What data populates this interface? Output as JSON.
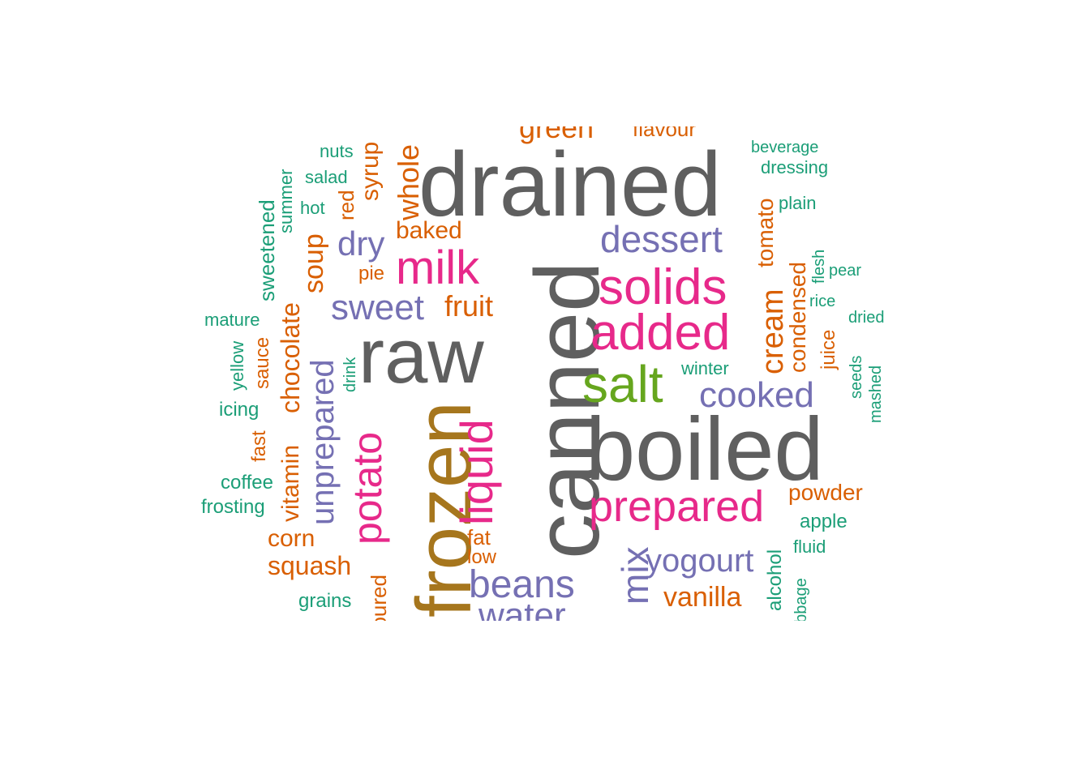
{
  "palette": {
    "gray": "#5f5f5f",
    "pink": "#e7298a",
    "purple": "#7570b3",
    "orange": "#d95f02",
    "teal": "#1b9e77",
    "gold": "#a6761d",
    "green": "#66a61e"
  },
  "words": [
    {
      "text": "drained",
      "color": "gray",
      "weight": 1.0
    },
    {
      "text": "canned",
      "color": "gray",
      "weight": 1.0
    },
    {
      "text": "raw",
      "color": "gray",
      "weight": 0.95
    },
    {
      "text": "boiled",
      "color": "gray",
      "weight": 0.95
    },
    {
      "text": "frozen",
      "color": "gold",
      "weight": 0.8
    },
    {
      "text": "salt",
      "color": "green",
      "weight": 0.6
    },
    {
      "text": "milk",
      "color": "pink",
      "weight": 0.5
    },
    {
      "text": "solids",
      "color": "pink",
      "weight": 0.5
    },
    {
      "text": "added",
      "color": "pink",
      "weight": 0.5
    },
    {
      "text": "liquid",
      "color": "pink",
      "weight": 0.5
    },
    {
      "text": "potato",
      "color": "pink",
      "weight": 0.45
    },
    {
      "text": "prepared",
      "color": "pink",
      "weight": 0.5
    },
    {
      "text": "beans",
      "color": "purple",
      "weight": 0.45
    },
    {
      "text": "dessert",
      "color": "purple",
      "weight": 0.4
    },
    {
      "text": "cooked",
      "color": "purple",
      "weight": 0.4
    },
    {
      "text": "sweet",
      "color": "purple",
      "weight": 0.4
    },
    {
      "text": "dry",
      "color": "purple",
      "weight": 0.38
    },
    {
      "text": "mix",
      "color": "purple",
      "weight": 0.4
    },
    {
      "text": "yogourt",
      "color": "purple",
      "weight": 0.35
    },
    {
      "text": "unprepared",
      "color": "purple",
      "weight": 0.35
    },
    {
      "text": "water",
      "color": "purple",
      "weight": 0.4
    },
    {
      "text": "cream",
      "color": "orange",
      "weight": 0.35
    },
    {
      "text": "whole",
      "color": "orange",
      "weight": 0.3
    },
    {
      "text": "green",
      "color": "orange",
      "weight": 0.3
    },
    {
      "text": "fruit",
      "color": "orange",
      "weight": 0.3
    },
    {
      "text": "baked",
      "color": "orange",
      "weight": 0.25
    },
    {
      "text": "soup",
      "color": "orange",
      "weight": 0.3
    },
    {
      "text": "chocolate",
      "color": "orange",
      "weight": 0.3
    },
    {
      "text": "vitamin",
      "color": "orange",
      "weight": 0.28
    },
    {
      "text": "corn",
      "color": "orange",
      "weight": 0.28
    },
    {
      "text": "squash",
      "color": "orange",
      "weight": 0.28
    },
    {
      "text": "vanilla",
      "color": "orange",
      "weight": 0.28
    },
    {
      "text": "tomato",
      "color": "orange",
      "weight": 0.25
    },
    {
      "text": "condensed",
      "color": "orange",
      "weight": 0.25
    },
    {
      "text": "powder",
      "color": "orange",
      "weight": 0.25
    },
    {
      "text": "syrup",
      "color": "orange",
      "weight": 0.25
    },
    {
      "text": "red",
      "color": "orange",
      "weight": 0.22
    },
    {
      "text": "pie",
      "color": "orange",
      "weight": 0.2
    },
    {
      "text": "sauce",
      "color": "orange",
      "weight": 0.2
    },
    {
      "text": "fast",
      "color": "orange",
      "weight": 0.2
    },
    {
      "text": "fat",
      "color": "orange",
      "weight": 0.2
    },
    {
      "text": "low",
      "color": "orange",
      "weight": 0.2
    },
    {
      "text": "juice",
      "color": "orange",
      "weight": 0.2
    },
    {
      "text": "flavour",
      "color": "orange",
      "weight": 0.2
    },
    {
      "text": "poured",
      "color": "orange",
      "weight": 0.22
    },
    {
      "text": "sweetened",
      "color": "teal",
      "weight": 0.2
    },
    {
      "text": "summer",
      "color": "teal",
      "weight": 0.15
    },
    {
      "text": "nuts",
      "color": "teal",
      "weight": 0.15
    },
    {
      "text": "salad",
      "color": "teal",
      "weight": 0.15
    },
    {
      "text": "hot",
      "color": "teal",
      "weight": 0.15
    },
    {
      "text": "beverage",
      "color": "teal",
      "weight": 0.15
    },
    {
      "text": "dressing",
      "color": "teal",
      "weight": 0.15
    },
    {
      "text": "plain",
      "color": "teal",
      "weight": 0.15
    },
    {
      "text": "flesh",
      "color": "teal",
      "weight": 0.15
    },
    {
      "text": "pear",
      "color": "teal",
      "weight": 0.15
    },
    {
      "text": "rice",
      "color": "teal",
      "weight": 0.15
    },
    {
      "text": "dried",
      "color": "teal",
      "weight": 0.15
    },
    {
      "text": "winter",
      "color": "teal",
      "weight": 0.15
    },
    {
      "text": "seeds",
      "color": "teal",
      "weight": 0.15
    },
    {
      "text": "mashed",
      "color": "teal",
      "weight": 0.15
    },
    {
      "text": "mature",
      "color": "teal",
      "weight": 0.15
    },
    {
      "text": "yellow",
      "color": "teal",
      "weight": 0.15
    },
    {
      "text": "icing",
      "color": "teal",
      "weight": 0.15
    },
    {
      "text": "drink",
      "color": "teal",
      "weight": 0.13
    },
    {
      "text": "coffee",
      "color": "teal",
      "weight": 0.15
    },
    {
      "text": "frosting",
      "color": "teal",
      "weight": 0.15
    },
    {
      "text": "apple",
      "color": "teal",
      "weight": 0.15
    },
    {
      "text": "fluid",
      "color": "teal",
      "weight": 0.15
    },
    {
      "text": "alcohol",
      "color": "teal",
      "weight": 0.15
    },
    {
      "text": "cabbage",
      "color": "teal",
      "weight": 0.13
    },
    {
      "text": "grains",
      "color": "teal",
      "weight": 0.15
    }
  ]
}
